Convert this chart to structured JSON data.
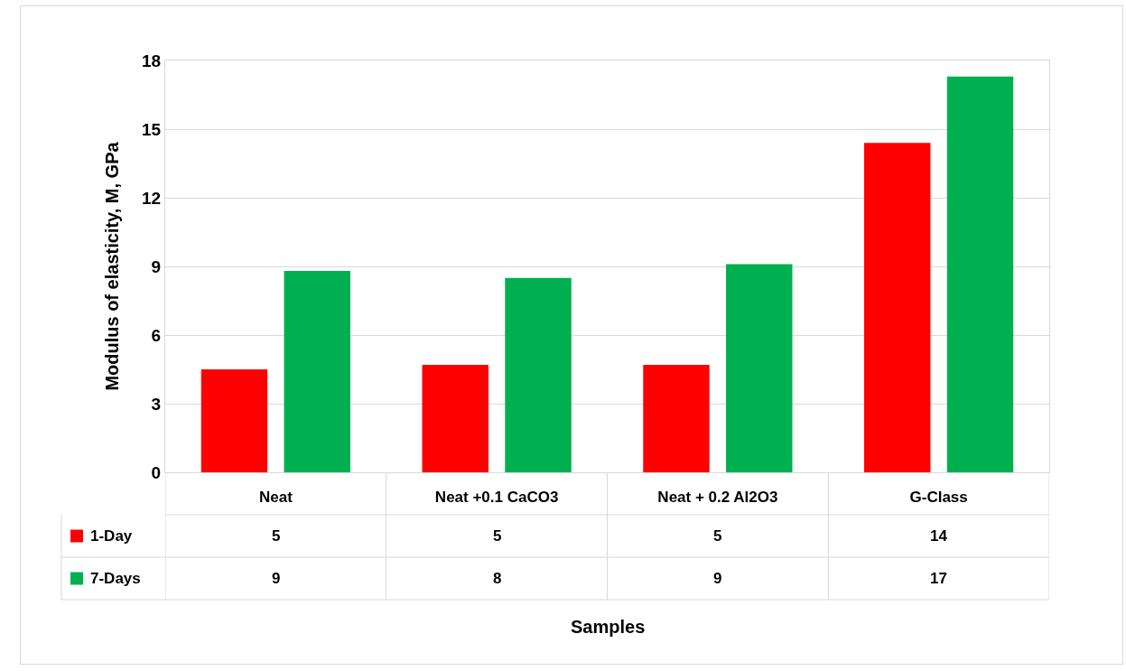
{
  "chart_data": {
    "type": "bar",
    "annotations": [
      "Samples"
    ],
    "ylabel": "Modulus of elasticity, M, GPa",
    "categories": [
      "Neat",
      "Neat +0.1 CaCO3",
      "Neat + 0.2 Al2O3",
      "G-Class"
    ],
    "series": [
      {
        "name": "1-Day",
        "color": "#ff0000",
        "values": [
          4.5,
          4.7,
          4.7,
          14.4
        ],
        "value_labels": [
          "5",
          "5",
          "5",
          "14"
        ]
      },
      {
        "name": "7-Days",
        "color": "#00b050",
        "values": [
          8.8,
          8.5,
          9.1,
          17.3
        ],
        "value_labels": [
          "9",
          "8",
          "9",
          "17"
        ]
      }
    ],
    "ylim": [
      0,
      18
    ],
    "yticks": [
      0,
      3,
      6,
      9,
      12,
      15,
      18
    ],
    "grid": "y",
    "legend": "bottom"
  }
}
